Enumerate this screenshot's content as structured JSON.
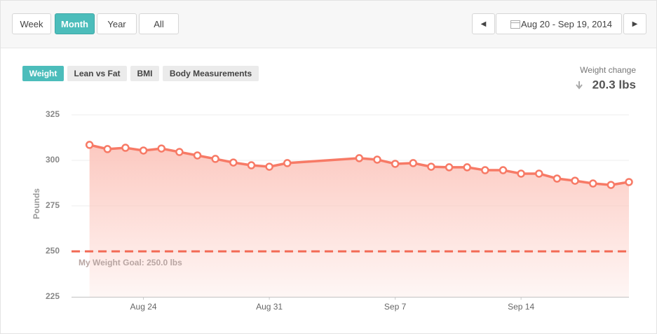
{
  "toolbar": {
    "ranges": [
      "Week",
      "Month",
      "Year",
      "All"
    ],
    "active_range": "Month",
    "date_range": "Aug 20 - Sep 19, 2014"
  },
  "tabs": {
    "items": [
      "Weight",
      "Lean vs Fat",
      "BMI",
      "Body Measurements"
    ],
    "active": "Weight"
  },
  "summary": {
    "label": "Weight change",
    "value": "20.3 lbs"
  },
  "chart_data": {
    "type": "line",
    "area": true,
    "y_label": "Pounds",
    "color": "#f77a66",
    "area_color": "#fcc6bd",
    "x": [
      "Aug 21",
      "Aug 22",
      "Aug 23",
      "Aug 24",
      "Aug 25",
      "Aug 26",
      "Aug 27",
      "Aug 28",
      "Aug 29",
      "Aug 30",
      "Aug 31",
      "Sep 1",
      "Sep 5",
      "Sep 6",
      "Sep 7",
      "Sep 8",
      "Sep 9",
      "Sep 10",
      "Sep 11",
      "Sep 12",
      "Sep 13",
      "Sep 14",
      "Sep 15",
      "Sep 16",
      "Sep 17",
      "Sep 18",
      "Sep 19",
      "Sep 20"
    ],
    "values": [
      308.5,
      306.2,
      306.9,
      305.4,
      306.5,
      304.6,
      302.7,
      300.8,
      298.8,
      297.3,
      296.5,
      298.5,
      301.2,
      300.4,
      298.1,
      298.5,
      296.5,
      296.2,
      296.2,
      294.6,
      294.6,
      292.7,
      292.7,
      290.0,
      288.8,
      287.3,
      286.5,
      288.1
    ],
    "goal": {
      "value": 250,
      "label": "My Weight Goal: 250.0 lbs",
      "color": "#f26a55"
    },
    "xlim": [
      "Aug 20",
      "Sep 20"
    ],
    "xticks": [
      "Aug 24",
      "Aug 31",
      "Sep 7",
      "Sep 14"
    ],
    "ylim": [
      225,
      325
    ],
    "yticks": [
      225,
      250,
      275,
      300,
      325
    ],
    "grid": true
  }
}
